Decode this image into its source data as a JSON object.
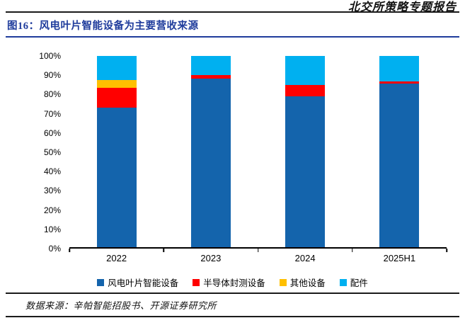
{
  "header": {
    "report_title": "北交所策略专题报告"
  },
  "figure": {
    "title": "图16：风电叶片智能设备为主要营收来源"
  },
  "footer": {
    "source": "数据来源：辛帕智能招股书、开源证券研究所"
  },
  "colors": {
    "title_blue": "#1F3C9C",
    "axis_black": "#000000",
    "rule_dark": "#1a1a1a"
  },
  "chart_data": {
    "type": "bar",
    "variant": "stacked-100-percent",
    "title": "图16：风电叶片智能设备为主要营收来源",
    "categories": [
      "2022",
      "2023",
      "2024",
      "2025H1"
    ],
    "series": [
      {
        "name": "风电叶片智能设备",
        "color": "#1464AC",
        "values": [
          73,
          88,
          79,
          85.5
        ]
      },
      {
        "name": "半导体封测设备",
        "color": "#FF0000",
        "values": [
          10.5,
          2,
          6,
          1
        ]
      },
      {
        "name": "其他设备",
        "color": "#FFC000",
        "values": [
          4,
          0,
          0,
          0
        ]
      },
      {
        "name": "配件",
        "color": "#00B0F0",
        "values": [
          12.5,
          10,
          15,
          13.5
        ]
      }
    ],
    "ylim": [
      0,
      100
    ],
    "yticks": [
      "0%",
      "10%",
      "20%",
      "30%",
      "40%",
      "50%",
      "60%",
      "70%",
      "80%",
      "90%",
      "100%"
    ],
    "unit": "percent",
    "grid": false,
    "legend_position": "bottom"
  }
}
